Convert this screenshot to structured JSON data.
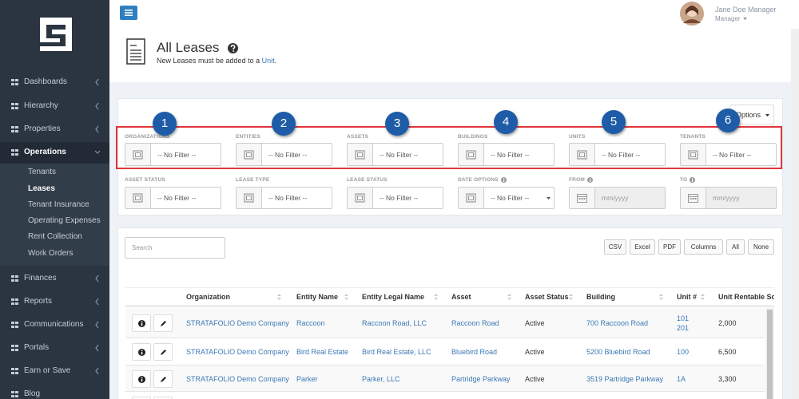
{
  "sidebar": {
    "menu": [
      {
        "label": "Dashboards"
      },
      {
        "label": "Hierarchy"
      },
      {
        "label": "Properties"
      },
      {
        "label": "Operations",
        "open": true,
        "submenu": [
          "Tenants",
          "Leases",
          "Tenant Insurance",
          "Operating Expenses",
          "Rent Collection",
          "Work Orders"
        ],
        "active_index": 1
      },
      {
        "label": "Finances"
      },
      {
        "label": "Reports"
      },
      {
        "label": "Communications"
      },
      {
        "label": "Portals"
      },
      {
        "label": "Earn or Save"
      },
      {
        "label": "Blog"
      }
    ]
  },
  "topbar": {
    "user_name": "Jane Doe Manager",
    "user_role": "Manager"
  },
  "header": {
    "title": "All Leases",
    "subtitle_prefix": "New Leases must be added to a ",
    "subtitle_link": "Unit",
    "subtitle_suffix": "."
  },
  "filters": {
    "options_button": "Options",
    "items": [
      {
        "label": "ORGANIZATIONS",
        "placeholder": "-- No Filter --"
      },
      {
        "label": "ENTITIES",
        "placeholder": "-- No Filter --"
      },
      {
        "label": "ASSETS",
        "placeholder": "-- No Filter --"
      },
      {
        "label": "BUILDINGS",
        "placeholder": "-- No Filter --"
      },
      {
        "label": "UNITS",
        "placeholder": "-- No Filter --"
      },
      {
        "label": "TENANTS",
        "placeholder": "-- No Filter --"
      },
      {
        "label": "ASSET STATUS",
        "placeholder": "-- No Filter --"
      },
      {
        "label": "LEASE TYPE",
        "placeholder": "-- No Filter --"
      },
      {
        "label": "LEASE STATUS",
        "placeholder": "-- No Filter --"
      },
      {
        "label": "DATE OPTIONS",
        "placeholder": "-- No Filter --",
        "info": true,
        "dropdown": true
      },
      {
        "label": "FROM",
        "placeholder": "mm/yyyy",
        "info": true,
        "disabled": true
      },
      {
        "label": "TO",
        "placeholder": "mm/yyyy",
        "info": true,
        "disabled": true
      }
    ],
    "callouts": [
      1,
      2,
      3,
      4,
      5,
      6
    ]
  },
  "table": {
    "search_placeholder": "Search",
    "buttons": [
      "CSV",
      "Excel",
      "PDF",
      "Columns",
      "All",
      "None"
    ],
    "columns": [
      "Organization",
      "Entity Name",
      "Entity Legal Name",
      "Asset",
      "Asset Status",
      "Building",
      "Unit #",
      "Unit Rentable Sq"
    ],
    "rows": [
      [
        "STRATAFOLIO Demo Company",
        "Raccoon",
        "Raccoon Road, LLC",
        "Raccoon Road",
        "Active",
        "700 Raccoon Road",
        [
          "101",
          "201"
        ],
        "2,000"
      ],
      [
        "STRATAFOLIO Demo Company",
        "Bird Real Estate",
        "Bird Real Estate, LLC",
        "Bluebird Road",
        "Active",
        "5200 Bluebird Road",
        [
          "100"
        ],
        "6,500"
      ],
      [
        "STRATAFOLIO Demo Company",
        "Parker",
        "Parker, LLC",
        "Partridge Parkway",
        "Active",
        "3519 Partridge Parkway",
        [
          "1A"
        ],
        "3,300"
      ]
    ]
  }
}
